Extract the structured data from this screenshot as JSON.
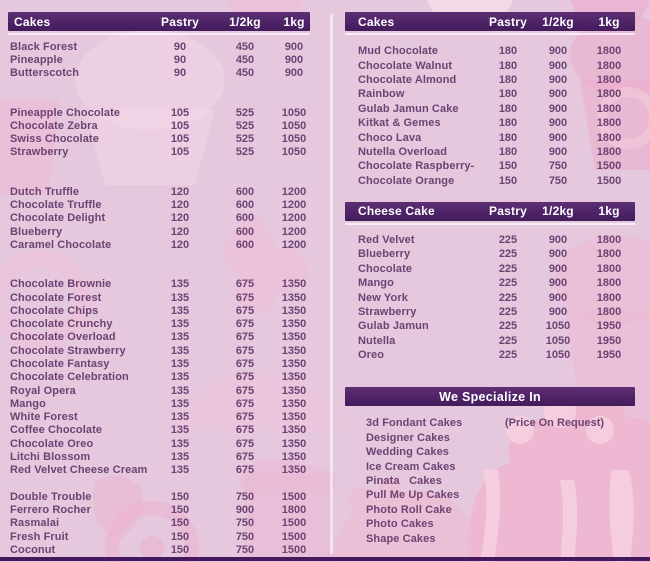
{
  "palette": {
    "pageBg": "#e5c7de",
    "headerBg": "#4e2368",
    "headerText": "#ffffff",
    "bodyText": "#6e4273",
    "divider": "#f6ecf4",
    "bottomBar": "#44195e",
    "decoPink": "#edaecd",
    "decoLight": "#f3d5e4"
  },
  "left": {
    "header": {
      "title": "Cakes",
      "columns": [
        "Pastry",
        "1/2kg",
        "1kg"
      ]
    },
    "groups": [
      [
        [
          "Black Forest",
          "90",
          "450",
          "900"
        ],
        [
          "Pineapple",
          "90",
          "450",
          "900"
        ],
        [
          "Butterscotch",
          "90",
          "450",
          "900"
        ]
      ],
      [
        [
          "Pineapple Chocolate",
          "105",
          "525",
          "1050"
        ],
        [
          "Chocolate Zebra",
          "105",
          "525",
          "1050"
        ],
        [
          "Swiss Chocolate",
          "105",
          "525",
          "1050"
        ],
        [
          "Strawberry",
          "105",
          "525",
          "1050"
        ]
      ],
      [
        [
          "Dutch Truffle",
          "120",
          "600",
          "1200"
        ],
        [
          "Chocolate Truffle",
          "120",
          "600",
          "1200"
        ],
        [
          "Chocolate Delight",
          "120",
          "600",
          "1200"
        ],
        [
          "Blueberry",
          "120",
          "600",
          "1200"
        ],
        [
          "Caramel Chocolate",
          "120",
          "600",
          "1200"
        ]
      ],
      [
        [
          "Chocolate Brownie",
          "135",
          "675",
          "1350"
        ],
        [
          "Chocolate Forest",
          "135",
          "675",
          "1350"
        ],
        [
          "Chocolate Chips",
          "135",
          "675",
          "1350"
        ],
        [
          "Chocolate Crunchy",
          "135",
          "675",
          "1350"
        ],
        [
          "Chocolate Overload",
          "135",
          "675",
          "1350"
        ],
        [
          "Chocolate Strawberry",
          "135",
          "675",
          "1350"
        ],
        [
          "Chocolate Fantasy",
          "135",
          "675",
          "1350"
        ],
        [
          "Chocolate Celebration",
          "135",
          "675",
          "1350"
        ],
        [
          "Royal Opera",
          "135",
          "675",
          "1350"
        ],
        [
          "Mango",
          "135",
          "675",
          "1350"
        ],
        [
          "White Forest",
          "135",
          "675",
          "1350"
        ],
        [
          "Coffee Chocolate",
          "135",
          "675",
          "1350"
        ],
        [
          "Chocolate Oreo",
          "135",
          "675",
          "1350"
        ],
        [
          "Litchi Blossom",
          "135",
          "675",
          "1350"
        ],
        [
          "Red Velvet Cheese Cream",
          "135",
          "675",
          "1350"
        ]
      ],
      [
        [
          "Double Trouble",
          "150",
          "750",
          "1500"
        ],
        [
          "Ferrero Rocher",
          "150",
          "900",
          "1800"
        ],
        [
          "Rasmalai",
          "150",
          "750",
          "1500"
        ],
        [
          "Fresh Fruit",
          "150",
          "750",
          "1500"
        ],
        [
          "Coconut",
          "150",
          "750",
          "1500"
        ]
      ]
    ]
  },
  "right": {
    "cakes": {
      "header": {
        "title": "Cakes",
        "columns": [
          "Pastry",
          "1/2kg",
          "1kg"
        ]
      },
      "groups": [
        [
          [
            "Mud Chocolate",
            "180",
            "900",
            "1800"
          ],
          [
            "Chocolate Walnut",
            "180",
            "900",
            "1800"
          ],
          [
            "Chocolate Almond",
            "180",
            "900",
            "1800"
          ],
          [
            "Rainbow",
            "180",
            "900",
            "1800"
          ],
          [
            "Gulab Jamun Cake",
            "180",
            "900",
            "1800"
          ],
          [
            "Kitkat & Gemes",
            "180",
            "900",
            "1800"
          ],
          [
            "Choco Lava",
            "180",
            "900",
            "1800"
          ],
          [
            "Nutella Overload",
            "180",
            "900",
            "1800"
          ],
          [
            "Chocolate Raspberry-",
            "150",
            "750",
            "1500"
          ],
          [
            "Chocolate Orange",
            "150",
            "750",
            "1500"
          ]
        ]
      ]
    },
    "cheese": {
      "header": {
        "title": "Cheese Cake",
        "columns": [
          "Pastry",
          "1/2kg",
          "1kg"
        ]
      },
      "groups": [
        [
          [
            "Red Velvet",
            "225",
            "900",
            "1800"
          ],
          [
            "Blueberry",
            "225",
            "900",
            "1800"
          ],
          [
            "Chocolate",
            "225",
            "900",
            "1800"
          ],
          [
            "Mango",
            "225",
            "900",
            "1800"
          ],
          [
            "New York",
            "225",
            "900",
            "1800"
          ],
          [
            "Strawberry",
            "225",
            "900",
            "1800"
          ],
          [
            "Gulab Jamun",
            "225",
            "1050",
            "1950"
          ],
          [
            "Nutella",
            "225",
            "1050",
            "1950"
          ],
          [
            "Oreo",
            "225",
            "1050",
            "1950"
          ]
        ]
      ]
    },
    "specialize": {
      "title": "We Specialize In",
      "note": "(Price On Request)",
      "items": [
        "3d Fondant Cakes",
        "Designer Cakes",
        "Wedding Cakes",
        "Ice Cream Cakes",
        "Pinata   Cakes",
        "Pull Me Up Cakes",
        "Photo Roll Cake",
        "Photo Cakes",
        "Shape Cakes"
      ]
    }
  }
}
